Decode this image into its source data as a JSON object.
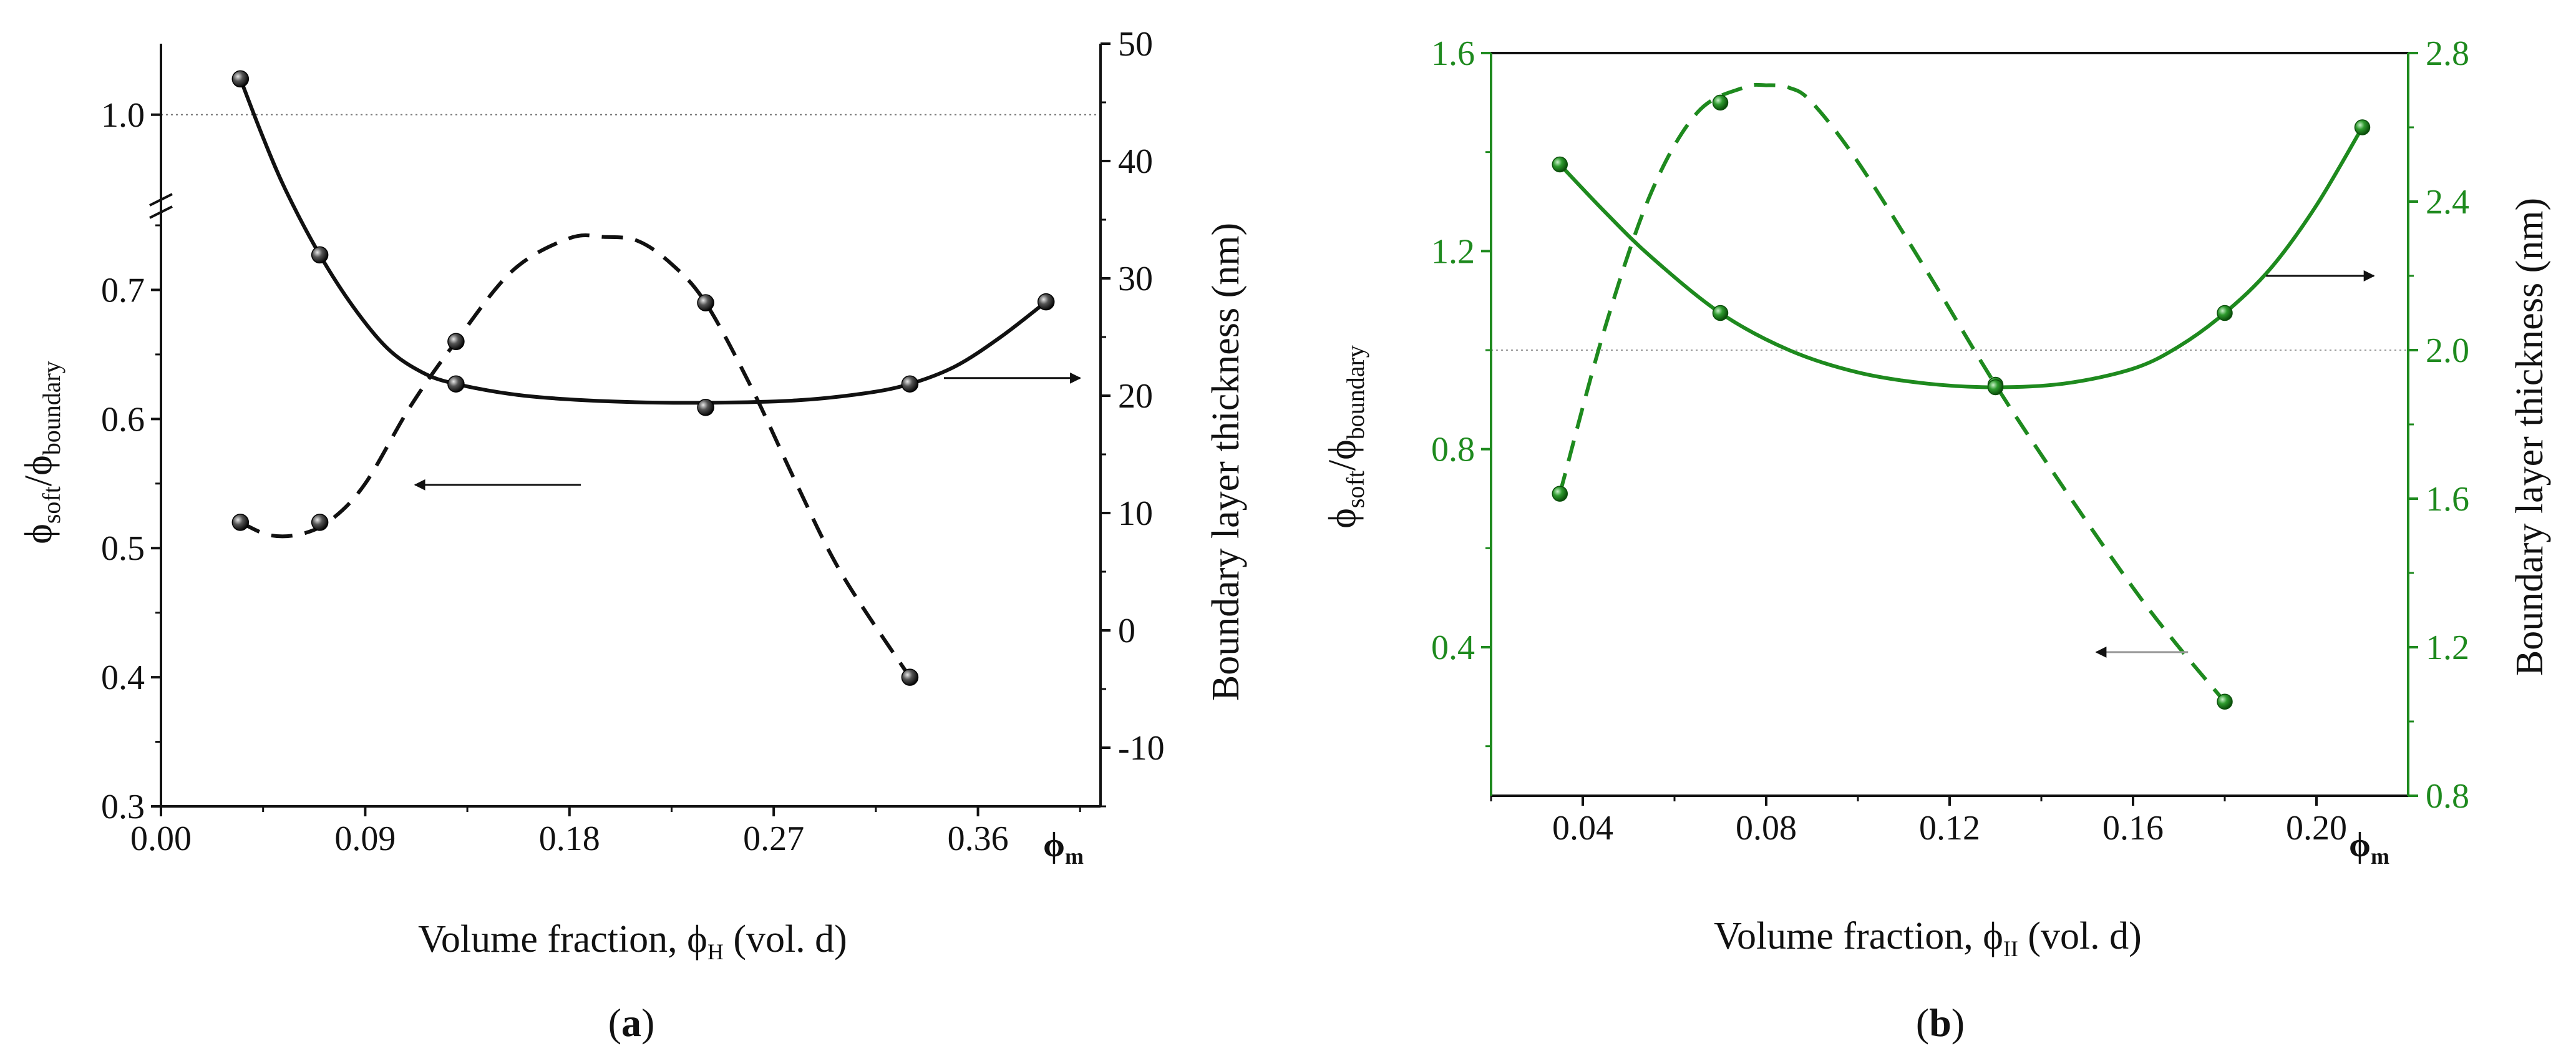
{
  "figure": {
    "panels": [
      "a",
      "b"
    ]
  },
  "chart_data": [
    {
      "type": "scatter",
      "panel_label": "a",
      "color": "#111111",
      "ylabel_left_main": "ϕ",
      "ylabel_left_sub1": "soft",
      "ylabel_left_slash": "/ϕ",
      "ylabel_left_sub2": "boundary",
      "ylabel_right": "Boundary layer thickness (nm)",
      "xlabel_main": "Volume fraction, ϕ",
      "xlabel_sub": "H",
      "xlabel_tail": " (vol. d)",
      "x_axis_end_main": "ϕ",
      "x_axis_end_sub": "m",
      "xlim": [
        0,
        0.414
      ],
      "xticks": [
        "0.00",
        "0.09",
        "0.18",
        "0.27",
        "0.36"
      ],
      "xtick_values": [
        0,
        0.09,
        0.18,
        0.27,
        0.36
      ],
      "left_axis": {
        "lower_range": [
          0.3,
          0.765
        ],
        "upper_range": [
          0.925,
          1.065
        ],
        "ticks": [
          "0.3",
          "0.4",
          "0.5",
          "0.6",
          "0.7",
          "1.0"
        ],
        "tick_values": [
          0.3,
          0.4,
          0.5,
          0.6,
          0.7,
          1.0
        ],
        "axis_break": true
      },
      "right_axis": {
        "ylim": [
          -15,
          50
        ],
        "ticks": [
          "-10",
          "0",
          "10",
          "20",
          "30",
          "40",
          "50"
        ],
        "tick_values": [
          -10,
          0,
          10,
          20,
          30,
          40,
          50
        ]
      },
      "reference_line": {
        "axis": "left",
        "value": 1.0
      },
      "series": [
        {
          "name": "soft/boundary ratio",
          "axis": "left",
          "style": "dashed",
          "x": [
            0.035,
            0.07,
            0.13,
            0.24,
            0.33
          ],
          "y": [
            0.52,
            0.52,
            0.66,
            0.69,
            0.4
          ],
          "curve_x": [
            0.035,
            0.048,
            0.062,
            0.075,
            0.09,
            0.11,
            0.13,
            0.155,
            0.18,
            0.195,
            0.21,
            0.225,
            0.24,
            0.26,
            0.28,
            0.3,
            0.33
          ],
          "curve_y": [
            0.52,
            0.51,
            0.511,
            0.522,
            0.55,
            0.61,
            0.66,
            0.715,
            0.74,
            0.741,
            0.738,
            0.72,
            0.69,
            0.625,
            0.55,
            0.48,
            0.4
          ]
        },
        {
          "name": "boundary layer thickness",
          "axis": "right",
          "style": "solid",
          "x": [
            0.035,
            0.07,
            0.13,
            0.24,
            0.33,
            0.39
          ],
          "y": [
            47,
            32,
            21,
            19,
            21,
            28
          ],
          "curve_x": [
            0.035,
            0.045,
            0.055,
            0.07,
            0.085,
            0.1,
            0.115,
            0.13,
            0.16,
            0.2,
            0.24,
            0.28,
            0.31,
            0.33,
            0.35,
            0.37,
            0.39
          ],
          "curve_y": [
            47,
            42,
            37.5,
            32,
            27.5,
            24,
            22,
            21,
            20,
            19.5,
            19.4,
            19.6,
            20.2,
            21,
            22.5,
            25,
            28
          ]
        }
      ],
      "annotations": [
        {
          "label": "arrow-to-left-axis",
          "from": [
            0.185,
            0.549
          ],
          "to": [
            0.112,
            0.549
          ],
          "axis": "left"
        },
        {
          "label": "arrow-to-right-axis",
          "from": [
            0.345,
            21.5
          ],
          "to": [
            0.405,
            21.5
          ],
          "axis": "right"
        }
      ]
    },
    {
      "type": "scatter",
      "panel_label": "b",
      "color": "#1e8a1e",
      "ylabel_left_main": "ϕ",
      "ylabel_left_sub1": "soft",
      "ylabel_left_slash": "/ϕ",
      "ylabel_left_sub2": "boundary",
      "ylabel_right": "Boundary layer thickness (nm)",
      "xlabel_main": "Volume fraction, ϕ",
      "xlabel_sub": "II",
      "xlabel_tail": " (vol. d)",
      "x_axis_end_main": "ϕ",
      "x_axis_end_sub": "m",
      "xlim": [
        0.02,
        0.22
      ],
      "xticks": [
        "0.04",
        "0.08",
        "0.12",
        "0.16",
        "0.20"
      ],
      "xtick_values": [
        0.04,
        0.08,
        0.12,
        0.16,
        0.2
      ],
      "left_axis": {
        "ylim": [
          0.1,
          1.6
        ],
        "ticks": [
          "0.4",
          "0.8",
          "1.2",
          "1.6"
        ],
        "tick_values": [
          0.4,
          0.8,
          1.2,
          1.6
        ]
      },
      "right_axis": {
        "ylim": [
          0.8,
          2.8
        ],
        "ticks": [
          "0.8",
          "1.2",
          "1.6",
          "2.0",
          "2.4",
          "2.8"
        ],
        "tick_values": [
          0.8,
          1.2,
          1.6,
          2.0,
          2.4,
          2.8
        ]
      },
      "reference_line": {
        "axis": "left",
        "value": 1.0
      },
      "series": [
        {
          "name": "soft/boundary ratio",
          "axis": "left",
          "style": "dashed",
          "x": [
            0.035,
            0.07,
            0.13,
            0.18
          ],
          "y": [
            0.71,
            1.5,
            0.93,
            0.29
          ],
          "curve_x": [
            0.035,
            0.045,
            0.055,
            0.065,
            0.075,
            0.08,
            0.085,
            0.09,
            0.1,
            0.115,
            0.13,
            0.145,
            0.16,
            0.17,
            0.18
          ],
          "curve_y": [
            0.71,
            1.05,
            1.32,
            1.48,
            1.53,
            1.535,
            1.53,
            1.5,
            1.38,
            1.16,
            0.93,
            0.72,
            0.52,
            0.4,
            0.29
          ]
        },
        {
          "name": "boundary layer thickness",
          "axis": "right",
          "style": "solid",
          "x": [
            0.035,
            0.07,
            0.13,
            0.18,
            0.21
          ],
          "y": [
            2.5,
            2.1,
            1.9,
            2.1,
            2.6
          ],
          "curve_x": [
            0.035,
            0.045,
            0.055,
            0.07,
            0.085,
            0.1,
            0.115,
            0.13,
            0.145,
            0.16,
            0.17,
            0.18,
            0.19,
            0.2,
            0.21
          ],
          "curve_y": [
            2.5,
            2.37,
            2.25,
            2.1,
            2.0,
            1.94,
            1.91,
            1.9,
            1.91,
            1.95,
            2.01,
            2.1,
            2.22,
            2.39,
            2.6
          ]
        }
      ],
      "annotations": [
        {
          "label": "arrow-to-left-axis",
          "from": [
            0.172,
            0.39
          ],
          "to": [
            0.152,
            0.39
          ],
          "axis": "left"
        },
        {
          "label": "arrow-to-right-axis",
          "from": [
            0.189,
            2.2
          ],
          "to": [
            0.2125,
            2.2
          ],
          "axis": "right"
        }
      ]
    }
  ]
}
